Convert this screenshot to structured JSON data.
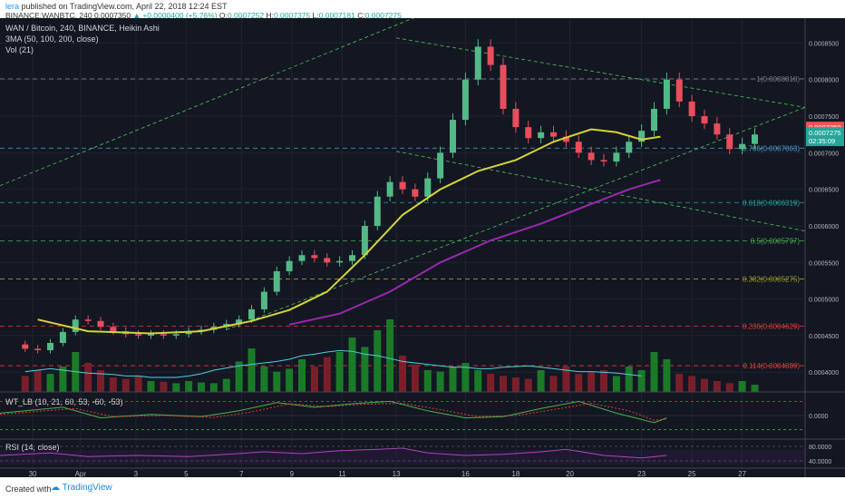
{
  "header": {
    "user": "lera",
    "published": "published on TradingView.com, April 22, 2018 12:24 EST",
    "symbol": "BINANCE:WANBTC, 240",
    "price": "0.0007350",
    "change": "+0.0000400 (+5.76%)",
    "o_label": "O:",
    "o_value": "0.0007252",
    "h_label": "H:",
    "h_value": "0.0007375",
    "l_label": "L:",
    "l_value": "0.0007181",
    "c_label": "C:",
    "c_value": "0.0007275"
  },
  "legend": {
    "title": "WAN / Bitcoin, 240, BINANCE, Heikin Ashi",
    "ma": "3MA (50, 100, 200, close)",
    "vol": "Vol (21)",
    "wt": "WT_LB (10, 21, 60, 53, -60, -53)",
    "rsi": "RSI (14, close)"
  },
  "chart_data": {
    "type": "candlestick",
    "title": "WAN / Bitcoin, 240, BINANCE, Heikin Ashi",
    "y_ticks": [
      "0.0008500",
      "0.0008000",
      "0.0007500",
      "0.0007000",
      "0.0006500",
      "0.0006000",
      "0.0005500",
      "0.0005000",
      "0.0004500",
      "0.0004000"
    ],
    "y_tick_values": [
      0.00085,
      0.0008,
      0.00075,
      0.0007,
      0.00065,
      0.0006,
      0.00055,
      0.0005,
      0.00045,
      0.0004
    ],
    "ylim": [
      0.000373,
      0.000884
    ],
    "x_ticks": [
      "30",
      "Apr",
      "3",
      "5",
      "7",
      "9",
      "11",
      "13",
      "16",
      "18",
      "20",
      "23",
      "25",
      "27"
    ],
    "x_tick_pos": [
      0.6,
      4.4,
      8.8,
      12.8,
      17.2,
      21.2,
      25.2,
      29.5,
      35,
      39,
      43.3,
      49,
      53,
      57
    ],
    "xlim": [
      -2,
      62
    ],
    "price_labels": [
      {
        "text": "0.0007350",
        "value": 0.000735,
        "color": "#ef5350"
      },
      {
        "text": "0.0007275",
        "value": 0.0007275,
        "color": "#26a69a"
      },
      {
        "text": "02:35:09",
        "value": 0.0007165,
        "color": "#26a69a"
      }
    ],
    "fib_levels": [
      {
        "label": "1(0.0008010)",
        "value": 0.000801,
        "color": "#787b86"
      },
      {
        "label": "0.786(0.0007063)",
        "value": 0.0007063,
        "color": "#4a9fd8"
      },
      {
        "label": "0.618(0.0006319)",
        "value": 0.0006319,
        "color": "#26a69a"
      },
      {
        "label": "0.5(0.0005797)",
        "value": 0.0005797,
        "color": "#4caf50"
      },
      {
        "label": "0.382(0.0005275)",
        "value": 0.0005275,
        "color": "#9e9d24"
      },
      {
        "label": "0.236(0.0004629)",
        "value": 0.0004629,
        "color": "#e53935"
      },
      {
        "label": "0.114(0.0004089)",
        "value": 0.0004089,
        "color": "#e53935"
      }
    ],
    "trend_lines": [
      {
        "from": [
          -2,
          0.000655
        ],
        "to": [
          31,
          0.000885
        ]
      },
      {
        "from": [
          29.5,
          0.000857
        ],
        "to": [
          62,
          0.000762
        ]
      },
      {
        "from": [
          29.5,
          0.000702
        ],
        "to": [
          62,
          0.000593
        ]
      },
      {
        "from": [
          16,
          0.000458
        ],
        "to": [
          62,
          0.000762
        ]
      }
    ],
    "candles": [
      {
        "o": 0.000438,
        "c": 0.000432
      },
      {
        "o": 0.000432,
        "c": 0.00043
      },
      {
        "o": 0.00043,
        "c": 0.00044
      },
      {
        "o": 0.00044,
        "c": 0.000455
      },
      {
        "o": 0.000455,
        "c": 0.000472
      },
      {
        "o": 0.000472,
        "c": 0.00047
      },
      {
        "o": 0.00047,
        "c": 0.000462
      },
      {
        "o": 0.000462,
        "c": 0.000456
      },
      {
        "o": 0.000456,
        "c": 0.000452
      },
      {
        "o": 0.000452,
        "c": 0.00045
      },
      {
        "o": 0.00045,
        "c": 0.000452
      },
      {
        "o": 0.000452,
        "c": 0.00045
      },
      {
        "o": 0.00045,
        "c": 0.000452
      },
      {
        "o": 0.000452,
        "c": 0.000456
      },
      {
        "o": 0.000456,
        "c": 0.000458
      },
      {
        "o": 0.000458,
        "c": 0.000462
      },
      {
        "o": 0.000462,
        "c": 0.000466
      },
      {
        "o": 0.000466,
        "c": 0.000472
      },
      {
        "o": 0.000472,
        "c": 0.000486
      },
      {
        "o": 0.000486,
        "c": 0.00051
      },
      {
        "o": 0.00051,
        "c": 0.000538
      },
      {
        "o": 0.000538,
        "c": 0.000552
      },
      {
        "o": 0.000552,
        "c": 0.00056
      },
      {
        "o": 0.00056,
        "c": 0.000556
      },
      {
        "o": 0.000556,
        "c": 0.00055
      },
      {
        "o": 0.00055,
        "c": 0.000552
      },
      {
        "o": 0.000552,
        "c": 0.00056
      },
      {
        "o": 0.00056,
        "c": 0.0006
      },
      {
        "o": 0.0006,
        "c": 0.00064
      },
      {
        "o": 0.00064,
        "c": 0.00066
      },
      {
        "o": 0.00066,
        "c": 0.00065
      },
      {
        "o": 0.00065,
        "c": 0.00064
      },
      {
        "o": 0.00064,
        "c": 0.000665
      },
      {
        "o": 0.000665,
        "c": 0.0007
      },
      {
        "o": 0.0007,
        "c": 0.000745
      },
      {
        "o": 0.000745,
        "c": 0.0008
      },
      {
        "o": 0.0008,
        "c": 0.000845
      },
      {
        "o": 0.000845,
        "c": 0.00082
      },
      {
        "o": 0.00082,
        "c": 0.00076
      },
      {
        "o": 0.00076,
        "c": 0.000735
      },
      {
        "o": 0.000735,
        "c": 0.00072
      },
      {
        "o": 0.00072,
        "c": 0.000728
      },
      {
        "o": 0.000728,
        "c": 0.000722
      },
      {
        "o": 0.000722,
        "c": 0.000715
      },
      {
        "o": 0.000715,
        "c": 0.0007
      },
      {
        "o": 0.0007,
        "c": 0.00069
      },
      {
        "o": 0.00069,
        "c": 0.000688
      },
      {
        "o": 0.000688,
        "c": 0.0007
      },
      {
        "o": 0.0007,
        "c": 0.000715
      },
      {
        "o": 0.000715,
        "c": 0.00073
      },
      {
        "o": 0.00073,
        "c": 0.00076
      },
      {
        "o": 0.00076,
        "c": 0.0008
      },
      {
        "o": 0.0008,
        "c": 0.00077
      },
      {
        "o": 0.00077,
        "c": 0.00075
      },
      {
        "o": 0.00075,
        "c": 0.00074
      },
      {
        "o": 0.00074,
        "c": 0.000725
      },
      {
        "o": 0.000725,
        "c": 0.000705
      },
      {
        "o": 0.000705,
        "c": 0.000712
      },
      {
        "o": 0.000712,
        "c": 0.000725
      }
    ],
    "ma_yellow": [
      [
        1,
        0.000472
      ],
      [
        5,
        0.000456
      ],
      [
        10,
        0.000453
      ],
      [
        14,
        0.000456
      ],
      [
        18,
        0.00047
      ],
      [
        21,
        0.000485
      ],
      [
        24,
        0.00051
      ],
      [
        27,
        0.00056
      ],
      [
        30,
        0.000615
      ],
      [
        33,
        0.00065
      ],
      [
        36,
        0.000675
      ],
      [
        39,
        0.00069
      ],
      [
        42,
        0.000715
      ],
      [
        45,
        0.000732
      ],
      [
        47,
        0.000728
      ],
      [
        49,
        0.000718
      ],
      [
        50.5,
        0.000722
      ]
    ],
    "ma_purple": [
      [
        21,
        0.000465
      ],
      [
        25,
        0.00048
      ],
      [
        29,
        0.00051
      ],
      [
        33,
        0.00055
      ],
      [
        37,
        0.00058
      ],
      [
        41,
        0.000603
      ],
      [
        45,
        0.00063
      ],
      [
        48,
        0.00065
      ],
      [
        50.5,
        0.000663
      ]
    ],
    "volume": {
      "ylim": [
        0,
        1
      ],
      "values": [
        0.22,
        0.3,
        0.25,
        0.35,
        0.55,
        0.4,
        0.3,
        0.2,
        0.18,
        0.22,
        0.15,
        0.14,
        0.12,
        0.15,
        0.13,
        0.12,
        0.18,
        0.42,
        0.6,
        0.35,
        0.28,
        0.32,
        0.45,
        0.35,
        0.48,
        0.55,
        0.75,
        0.62,
        0.85,
        1.0,
        0.5,
        0.38,
        0.3,
        0.28,
        0.35,
        0.4,
        0.3,
        0.25,
        0.22,
        0.2,
        0.18,
        0.3,
        0.22,
        0.35,
        0.25,
        0.28,
        0.3,
        0.22,
        0.35,
        0.3,
        0.55,
        0.45,
        0.25,
        0.22,
        0.18,
        0.15,
        0.12,
        0.15,
        0.1
      ],
      "avg": [
        0.28,
        0.3,
        0.32,
        0.3,
        0.28,
        0.26,
        0.25,
        0.24,
        0.22,
        0.22,
        0.2,
        0.2,
        0.2,
        0.22,
        0.25,
        0.3,
        0.33,
        0.36,
        0.38,
        0.4,
        0.42,
        0.45,
        0.5,
        0.52,
        0.55,
        0.57,
        0.56,
        0.52,
        0.5,
        0.46,
        0.42,
        0.4,
        0.38,
        0.36,
        0.34,
        0.34,
        0.32,
        0.32,
        0.34,
        0.35,
        0.36,
        0.34,
        0.32,
        0.3,
        0.28,
        0.28,
        0.27,
        0.26,
        0.24,
        0.22
      ]
    },
    "wt": {
      "ylim": [
        -1,
        1
      ],
      "ticks": [
        "0.0000"
      ],
      "tick_values": [
        0
      ],
      "line1": [
        [
          -2,
          0.1
        ],
        [
          3,
          0.35
        ],
        [
          6,
          -0.1
        ],
        [
          10,
          0.05
        ],
        [
          14,
          -0.05
        ],
        [
          17,
          0.2
        ],
        [
          20,
          0.55
        ],
        [
          23,
          0.35
        ],
        [
          26,
          0.5
        ],
        [
          29,
          0.6
        ],
        [
          32,
          0.2
        ],
        [
          35,
          -0.1
        ],
        [
          38,
          -0.05
        ],
        [
          41,
          0.3
        ],
        [
          44,
          0.6
        ],
        [
          47,
          0.1
        ],
        [
          50,
          -0.3
        ],
        [
          51,
          -0.1
        ]
      ],
      "line2": [
        [
          -2,
          0.05
        ],
        [
          4,
          0.3
        ],
        [
          7,
          -0.05
        ],
        [
          11,
          0.0
        ],
        [
          15,
          -0.08
        ],
        [
          18,
          0.15
        ],
        [
          21,
          0.5
        ],
        [
          24,
          0.38
        ],
        [
          27,
          0.48
        ],
        [
          30,
          0.52
        ],
        [
          33,
          0.25
        ],
        [
          36,
          -0.05
        ],
        [
          39,
          0.0
        ],
        [
          42,
          0.25
        ],
        [
          45,
          0.52
        ],
        [
          48,
          0.2
        ],
        [
          50,
          -0.2
        ],
        [
          51,
          -0.15
        ]
      ]
    },
    "rsi": {
      "ylim": [
        20,
        100
      ],
      "ticks": [
        "80.0000",
        "40.0000"
      ],
      "tick_values": [
        80,
        40
      ],
      "values": [
        [
          -2,
          55
        ],
        [
          2,
          62
        ],
        [
          5,
          52
        ],
        [
          9,
          55
        ],
        [
          13,
          52
        ],
        [
          16,
          58
        ],
        [
          19,
          65
        ],
        [
          22,
          60
        ],
        [
          25,
          68
        ],
        [
          28,
          72
        ],
        [
          30,
          75
        ],
        [
          32,
          62
        ],
        [
          35,
          55
        ],
        [
          38,
          58
        ],
        [
          41,
          65
        ],
        [
          43,
          72
        ],
        [
          46,
          55
        ],
        [
          49,
          48
        ],
        [
          51,
          55
        ]
      ]
    }
  }
}
